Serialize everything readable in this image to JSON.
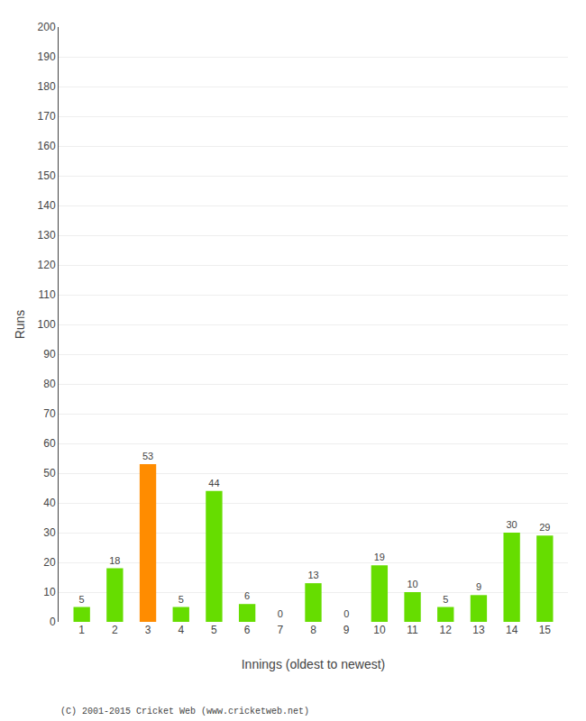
{
  "chart_data": {
    "type": "bar",
    "xlabel": "Innings (oldest to newest)",
    "ylabel": "Runs",
    "categories": [
      1,
      2,
      3,
      4,
      5,
      6,
      7,
      8,
      9,
      10,
      11,
      12,
      13,
      14,
      15
    ],
    "values": [
      5,
      18,
      53,
      5,
      44,
      6,
      0,
      13,
      0,
      19,
      10,
      5,
      9,
      30,
      29
    ],
    "colors": [
      "#66dd00",
      "#66dd00",
      "#ff8c00",
      "#66dd00",
      "#66dd00",
      "#66dd00",
      "#66dd00",
      "#66dd00",
      "#66dd00",
      "#66dd00",
      "#66dd00",
      "#66dd00",
      "#66dd00",
      "#66dd00",
      "#66dd00"
    ],
    "ylim": [
      0,
      200
    ],
    "yticks": [
      0,
      10,
      20,
      30,
      40,
      50,
      60,
      70,
      80,
      90,
      100,
      110,
      120,
      130,
      140,
      150,
      160,
      170,
      180,
      190,
      200
    ],
    "grid": true,
    "data_labels": true,
    "annotations": [
      "(C) 2001-2015 Cricket Web (www.cricketweb.net)"
    ]
  }
}
